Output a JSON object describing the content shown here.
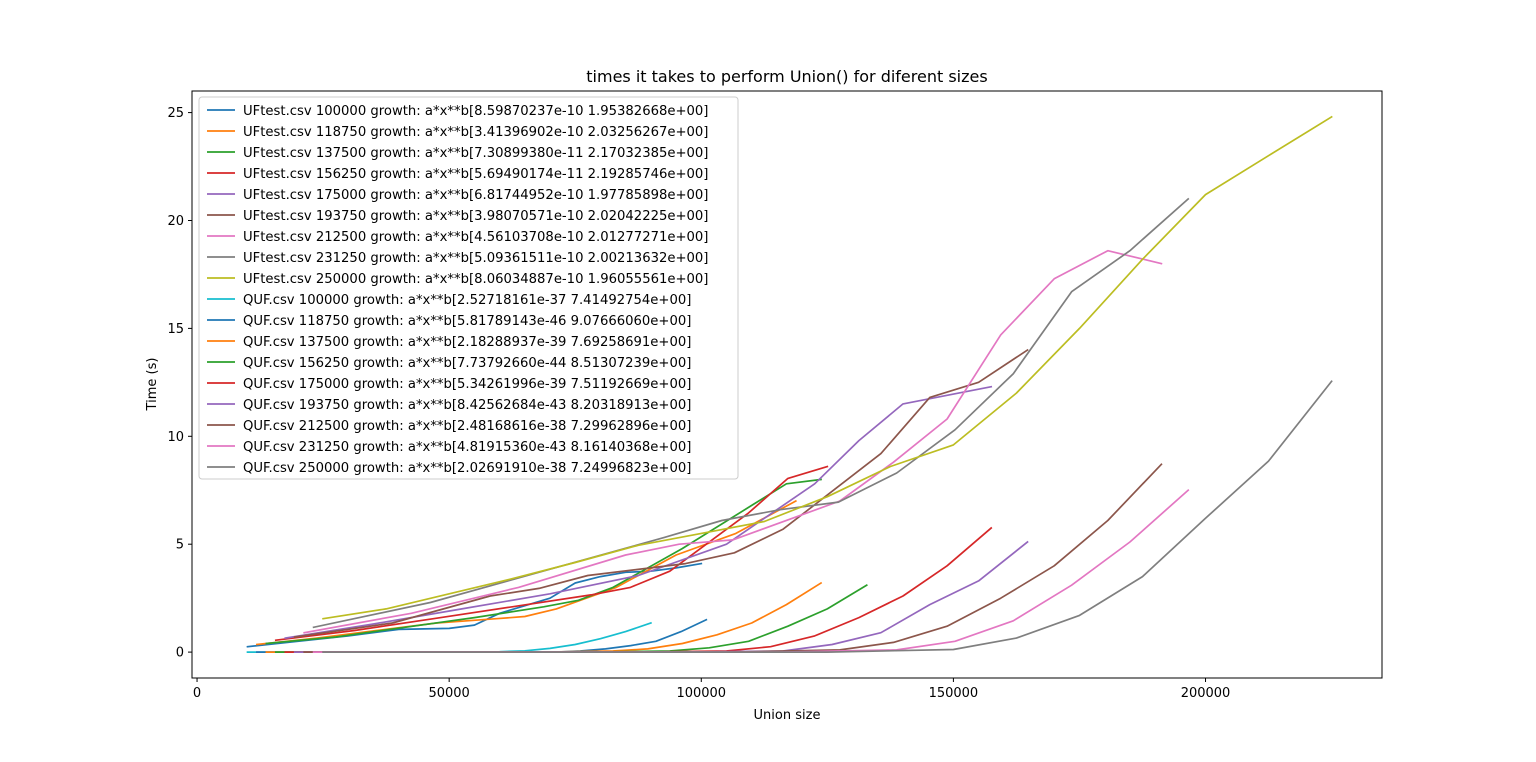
{
  "chart_data": {
    "type": "line",
    "title": "times it takes to perform Union() for diferent sizes",
    "xlabel": "Union size",
    "ylabel": "Time  (s)",
    "xlim": [
      -1000,
      235000
    ],
    "ylim": [
      -1.2,
      26.0
    ],
    "x_ticks": [
      0,
      50000,
      100000,
      150000,
      200000
    ],
    "y_ticks": [
      0,
      5,
      10,
      15,
      20,
      25
    ],
    "grid": false,
    "legend_position": "upper-left",
    "series": [
      {
        "name": "UFtest.csv 100000 growth: a*x**b[8.59870237e-10 1.95382668e+00]",
        "color": "#1f77b4",
        "x": [
          10000,
          20000,
          30000,
          40000,
          50000,
          55000,
          60000,
          70000,
          75000,
          80000,
          85000,
          90000,
          95000,
          100000
        ],
        "y": [
          0.25,
          0.5,
          0.75,
          1.05,
          1.1,
          1.25,
          1.8,
          2.5,
          3.2,
          3.5,
          3.7,
          3.75,
          3.9,
          4.1
        ]
      },
      {
        "name": "UFtest.csv 118750 growth: a*x**b[3.41396902e-10 2.03256267e+00]",
        "color": "#ff7f0e",
        "x": [
          11875,
          23750,
          35625,
          47500,
          59375,
          65000,
          71250,
          83125,
          95000,
          106875,
          118750
        ],
        "y": [
          0.35,
          0.65,
          1.0,
          1.35,
          1.55,
          1.65,
          2.0,
          3.0,
          4.5,
          5.5,
          7.0
        ]
      },
      {
        "name": "UFtest.csv 137500 growth: a*x**b[7.30899380e-11 2.17032385e+00]",
        "color": "#2ca02c",
        "x": [
          13750,
          27500,
          41250,
          55000,
          68750,
          75625,
          82500,
          96250,
          110000,
          116875,
          123750
        ],
        "y": [
          0.4,
          0.7,
          1.15,
          1.6,
          2.1,
          2.4,
          3.0,
          4.8,
          6.8,
          7.8,
          8.0
        ]
      },
      {
        "name": "UFtest.csv 156250 growth: a*x**b[5.69490174e-11 2.19285746e+00]",
        "color": "#d62728",
        "x": [
          15625,
          31250,
          46875,
          62500,
          78125,
          85937,
          93750,
          109375,
          117187,
          125000
        ],
        "y": [
          0.55,
          1.0,
          1.55,
          2.1,
          2.65,
          3.0,
          3.75,
          6.45,
          8.05,
          8.6
        ]
      },
      {
        "name": "UFtest.csv 175000 growth: a*x**b[6.81744952e-10 1.97785898e+00]",
        "color": "#9467bd",
        "x": [
          17500,
          35000,
          52500,
          70000,
          87500,
          105000,
          122500,
          131250,
          140000,
          148750,
          157500
        ],
        "y": [
          0.65,
          1.3,
          2.0,
          2.7,
          3.55,
          5.0,
          7.8,
          9.8,
          11.5,
          11.9,
          12.3
        ]
      },
      {
        "name": "UFtest.csv 193750 growth: a*x**b[3.98070571e-10 2.02042225e+00]",
        "color": "#8c564b",
        "x": [
          19375,
          38750,
          58125,
          67812,
          77500,
          96875,
          106562,
          116250,
          135625,
          145312,
          155000,
          164687
        ],
        "y": [
          0.7,
          1.35,
          2.6,
          2.95,
          3.55,
          4.1,
          4.6,
          5.7,
          9.2,
          11.8,
          12.5,
          14.0
        ]
      },
      {
        "name": "UFtest.csv 212500 growth: a*x**b[4.56103708e-10 2.01277271e+00]",
        "color": "#e377c2",
        "x": [
          21250,
          42500,
          63750,
          85000,
          95625,
          106250,
          127500,
          138125,
          148750,
          159375,
          170000,
          180625,
          191250
        ],
        "y": [
          0.9,
          1.8,
          3.0,
          4.5,
          5.0,
          5.2,
          7.0,
          8.8,
          10.8,
          14.7,
          17.3,
          18.6,
          18.0
        ]
      },
      {
        "name": "UFtest.csv 231250 growth: a*x**b[5.09361511e-10 2.00213632e+00]",
        "color": "#7f7f7f",
        "x": [
          23125,
          46250,
          69375,
          92500,
          104062,
          115625,
          127187,
          138750,
          150312,
          161875,
          173437,
          185000,
          196562
        ],
        "y": [
          1.15,
          2.3,
          3.8,
          5.3,
          6.1,
          6.6,
          6.95,
          8.3,
          10.3,
          12.9,
          16.7,
          18.6,
          21.0
        ]
      },
      {
        "name": "UFtest.csv 250000 growth: a*x**b[8.06034887e-10 1.96055561e+00]",
        "color": "#bcbd22",
        "x": [
          25000,
          37500,
          50000,
          62500,
          75000,
          87500,
          100000,
          112500,
          125000,
          137500,
          150000,
          162500,
          175000,
          187500,
          200000,
          212500,
          225000
        ],
        "y": [
          1.55,
          2.0,
          2.7,
          3.4,
          4.15,
          4.95,
          5.5,
          6.05,
          7.2,
          8.6,
          9.6,
          12.0,
          15.0,
          18.2,
          21.2,
          23.0,
          24.8
        ]
      },
      {
        "name": "QUF.csv 100000 growth: a*x**b[2.52718161e-37 7.41492754e+00]",
        "color": "#17becf",
        "x": [
          10000,
          20000,
          30000,
          40000,
          50000,
          60000,
          65000,
          70000,
          75000,
          80000,
          85000,
          90000
        ],
        "y": [
          0.0,
          0.0,
          0.0,
          0.0,
          0.0,
          0.02,
          0.06,
          0.17,
          0.35,
          0.62,
          0.95,
          1.35
        ]
      },
      {
        "name": "QUF.csv 118750 growth: a*x**b[5.81789143e-46 9.07666060e+00]",
        "color": "#1f77b4",
        "x": [
          11875,
          23750,
          35625,
          47500,
          59375,
          71250,
          76000,
          81000,
          86000,
          91000,
          96000,
          101000
        ],
        "y": [
          0.0,
          0.0,
          0.0,
          0.0,
          0.0,
          0.0,
          0.05,
          0.15,
          0.3,
          0.5,
          0.95,
          1.5
        ]
      },
      {
        "name": "QUF.csv 137500 growth: a*x**b[2.18288937e-39 7.69258691e+00]",
        "color": "#ff7f0e",
        "x": [
          13750,
          27500,
          41250,
          55000,
          68750,
          82500,
          89375,
          96250,
          103125,
          110000,
          116875,
          123750
        ],
        "y": [
          0.0,
          0.0,
          0.0,
          0.0,
          0.0,
          0.05,
          0.15,
          0.4,
          0.8,
          1.35,
          2.2,
          3.2
        ]
      },
      {
        "name": "QUF.csv 156250 growth: a*x**b[7.73792660e-44 8.51307239e+00]",
        "color": "#2ca02c",
        "x": [
          15625,
          31250,
          46875,
          62500,
          78125,
          93750,
          101562,
          109375,
          117187,
          125000,
          132812
        ],
        "y": [
          0.0,
          0.0,
          0.0,
          0.0,
          0.0,
          0.05,
          0.2,
          0.5,
          1.2,
          2.0,
          3.1
        ]
      },
      {
        "name": "QUF.csv 175000 growth: a*x**b[5.34261996e-39 7.51192669e+00]",
        "color": "#d62728",
        "x": [
          17500,
          35000,
          52500,
          70000,
          87500,
          105000,
          113750,
          122500,
          131250,
          140000,
          148750,
          157500
        ],
        "y": [
          0.0,
          0.0,
          0.0,
          0.0,
          0.0,
          0.05,
          0.25,
          0.75,
          1.6,
          2.6,
          4.0,
          5.75
        ]
      },
      {
        "name": "QUF.csv 193750 growth: a*x**b[8.42562684e-43 8.20318913e+00]",
        "color": "#9467bd",
        "x": [
          19375,
          38750,
          58125,
          77500,
          96875,
          116250,
          125937,
          135625,
          145312,
          155000,
          164687
        ],
        "y": [
          0.0,
          0.0,
          0.0,
          0.0,
          0.0,
          0.05,
          0.35,
          0.9,
          2.2,
          3.3,
          5.1
        ]
      },
      {
        "name": "QUF.csv 212500 growth: a*x**b[2.48168616e-38 7.29962896e+00]",
        "color": "#8c564b",
        "x": [
          21250,
          42500,
          63750,
          85000,
          106250,
          127500,
          138125,
          148750,
          159375,
          170000,
          180625,
          191250
        ],
        "y": [
          0.0,
          0.0,
          0.0,
          0.0,
          0.0,
          0.1,
          0.45,
          1.2,
          2.5,
          4.0,
          6.1,
          8.7
        ]
      },
      {
        "name": "QUF.csv 231250 growth: a*x**b[4.81915360e-43 8.16140368e+00]",
        "color": "#e377c2",
        "x": [
          23125,
          46250,
          69375,
          92500,
          115625,
          138750,
          150312,
          161875,
          173437,
          185000,
          196562
        ],
        "y": [
          0.0,
          0.0,
          0.0,
          0.0,
          0.0,
          0.1,
          0.5,
          1.45,
          3.1,
          5.1,
          7.5
        ]
      },
      {
        "name": "QUF.csv 250000 growth: a*x**b[2.02691910e-38 7.24996823e+00]",
        "color": "#7f7f7f",
        "x": [
          25000,
          50000,
          75000,
          100000,
          125000,
          150000,
          162500,
          175000,
          187500,
          200000,
          212500,
          225000
        ],
        "y": [
          0.0,
          0.0,
          0.0,
          0.0,
          0.0,
          0.12,
          0.65,
          1.7,
          3.5,
          6.2,
          8.85,
          12.55
        ]
      }
    ]
  }
}
